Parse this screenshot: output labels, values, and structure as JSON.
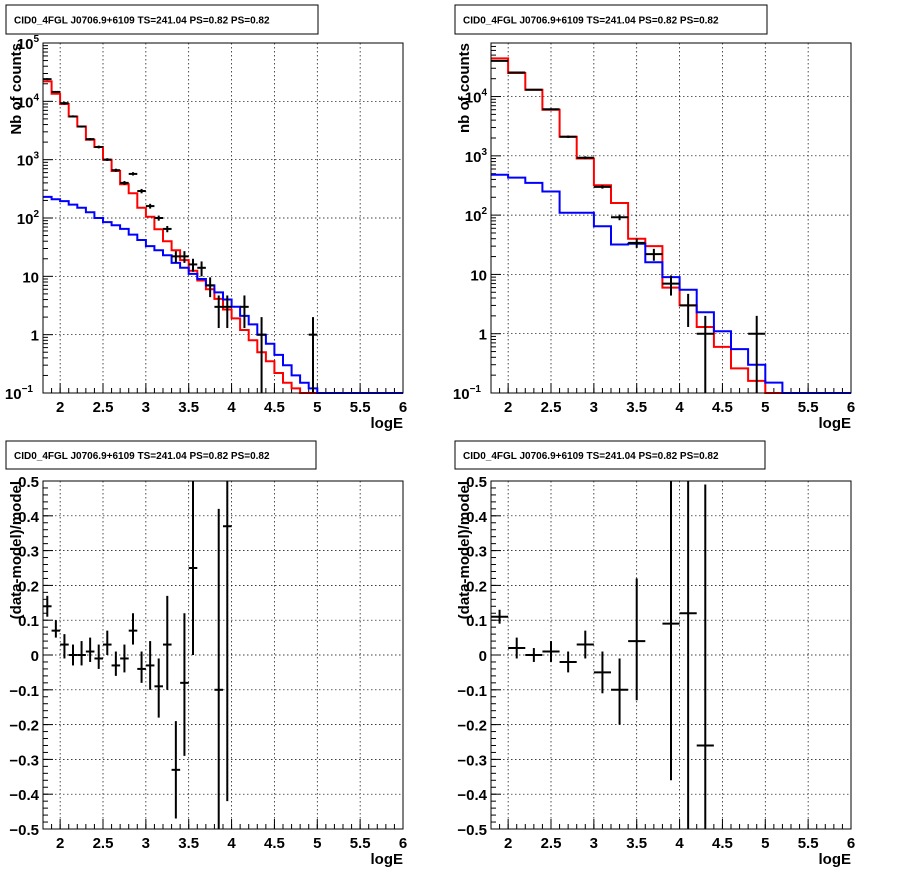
{
  "chart_data": [
    {
      "type": "line",
      "title": "CID0_4FGL J0706.9+6109 TS=241.04 PS=0.82 PS=0.82",
      "xlabel": "logE",
      "ylabel": "Nb of counts",
      "xlim": [
        1.8,
        6.0
      ],
      "ylim": [
        0.1,
        100000
      ],
      "yscale": "log",
      "grid": true,
      "xticks": [
        "2",
        "2.5",
        "3",
        "3.5",
        "4",
        "4.5",
        "5",
        "5.5",
        "6"
      ],
      "yticks": [
        {
          "v": 0.1,
          "b": "10",
          "e": "−1"
        },
        {
          "v": 1,
          "b": "1",
          "e": ""
        },
        {
          "v": 10,
          "b": "10",
          "e": ""
        },
        {
          "v": 100,
          "b": "10",
          "e": "2"
        },
        {
          "v": 1000,
          "b": "10",
          "e": "3"
        },
        {
          "v": 10000,
          "b": "10",
          "e": "4"
        },
        {
          "v": 100000,
          "b": "10",
          "e": "5"
        }
      ],
      "edges": [
        1.8,
        1.9,
        2.0,
        2.1,
        2.2,
        2.3,
        2.4,
        2.5,
        2.6,
        2.7,
        2.8,
        2.9,
        3.0,
        3.1,
        3.2,
        3.3,
        3.4,
        3.5,
        3.6,
        3.7,
        3.8,
        3.9,
        4.0,
        4.1,
        4.2,
        4.3,
        4.4,
        4.5,
        4.6,
        4.7,
        4.8,
        4.9,
        5.0,
        5.2,
        5.4,
        5.6,
        5.8,
        6.0
      ],
      "series": [
        {
          "color": "#ff0000",
          "values": [
            22000,
            13500,
            9000,
            5500,
            3700,
            2200,
            1650,
            1000,
            640,
            380,
            265,
            150,
            105,
            64,
            40,
            28,
            19,
            12.5,
            8.5,
            6.0,
            4.1,
            2.7,
            1.9,
            1.2,
            0.8,
            0.5,
            0.35,
            0.22,
            0.15,
            0.12,
            0.1,
            0.1,
            0.1,
            0.1,
            0.1,
            0.1,
            0.1
          ]
        },
        {
          "color": "#0000ff",
          "values": [
            230,
            210,
            195,
            170,
            150,
            125,
            100,
            85,
            75,
            65,
            52,
            42,
            33,
            28,
            23,
            17,
            14,
            11,
            9,
            7,
            5.3,
            4.0,
            3.0,
            2.1,
            1.5,
            1.0,
            0.7,
            0.45,
            0.3,
            0.2,
            0.15,
            0.12,
            0.1,
            0.1,
            0.1,
            0.1,
            0.1
          ]
        }
      ],
      "points": [
        {
          "x": 1.85,
          "y": 24000,
          "xe": 0.05,
          "lo": 23000,
          "hi": 25000
        },
        {
          "x": 1.95,
          "y": 14500,
          "xe": 0.05,
          "lo": 14000,
          "hi": 15000
        },
        {
          "x": 2.05,
          "y": 9300,
          "xe": 0.05,
          "lo": 8800,
          "hi": 9800
        },
        {
          "x": 2.15,
          "y": 5500,
          "xe": 0.05,
          "lo": 5300,
          "hi": 5750
        },
        {
          "x": 2.25,
          "y": 3700,
          "xe": 0.05,
          "lo": 3550,
          "hi": 3850
        },
        {
          "x": 2.35,
          "y": 2250,
          "xe": 0.05,
          "lo": 2150,
          "hi": 2350
        },
        {
          "x": 2.45,
          "y": 1650,
          "xe": 0.05,
          "lo": 1560,
          "hi": 1740
        },
        {
          "x": 2.55,
          "y": 1000,
          "xe": 0.05,
          "lo": 950,
          "hi": 1060
        },
        {
          "x": 2.65,
          "y": 660,
          "xe": 0.05,
          "lo": 620,
          "hi": 700
        },
        {
          "x": 2.75,
          "y": 400,
          "xe": 0.05,
          "lo": 370,
          "hi": 430
        },
        {
          "x": 2.85,
          "y": 570,
          "xe": 0.05,
          "lo": 535,
          "hi": 610
        },
        {
          "x": 2.95,
          "y": 290,
          "xe": 0.05,
          "lo": 265,
          "hi": 315
        },
        {
          "x": 3.05,
          "y": 160,
          "xe": 0.05,
          "lo": 145,
          "hi": 175
        },
        {
          "x": 3.15,
          "y": 100,
          "xe": 0.05,
          "lo": 90,
          "hi": 110
        },
        {
          "x": 3.25,
          "y": 65,
          "xe": 0.05,
          "lo": 57,
          "hi": 73
        },
        {
          "x": 3.35,
          "y": 22,
          "xe": 0.05,
          "lo": 17,
          "hi": 27
        },
        {
          "x": 3.45,
          "y": 22,
          "xe": 0.05,
          "lo": 17,
          "hi": 27
        },
        {
          "x": 3.55,
          "y": 16,
          "xe": 0.05,
          "lo": 12,
          "hi": 20
        },
        {
          "x": 3.65,
          "y": 14,
          "xe": 0.05,
          "lo": 10,
          "hi": 18
        },
        {
          "x": 3.75,
          "y": 7,
          "xe": 0.05,
          "lo": 4.4,
          "hi": 9.6
        },
        {
          "x": 3.85,
          "y": 3,
          "xe": 0.05,
          "lo": 1.3,
          "hi": 4.7
        },
        {
          "x": 3.95,
          "y": 3,
          "xe": 0.05,
          "lo": 1.3,
          "hi": 4.7
        },
        {
          "x": 4.15,
          "y": 3,
          "xe": 0.05,
          "lo": 1.3,
          "hi": 4.7
        },
        {
          "x": 4.35,
          "y": 1,
          "xe": 0.05,
          "lo": 0.1,
          "hi": 2
        },
        {
          "x": 4.95,
          "y": 1,
          "xe": 0.05,
          "lo": 0.1,
          "hi": 2
        }
      ]
    },
    {
      "type": "line",
      "title": "CID0_4FGL J0706.9+6109 TS=241.04 PS=0.82 PS=0.82",
      "xlabel": "logE",
      "ylabel": "nb of counts",
      "xlim": [
        1.8,
        6.0
      ],
      "ylim": [
        0.1,
        80000
      ],
      "yscale": "log",
      "grid": true,
      "xticks": [
        "2",
        "2.5",
        "3",
        "3.5",
        "4",
        "4.5",
        "5",
        "5.5",
        "6"
      ],
      "yticks": [
        {
          "v": 0.1,
          "b": "10",
          "e": "−1"
        },
        {
          "v": 1,
          "b": "1",
          "e": ""
        },
        {
          "v": 10,
          "b": "10",
          "e": ""
        },
        {
          "v": 100,
          "b": "10",
          "e": "2"
        },
        {
          "v": 1000,
          "b": "10",
          "e": "3"
        },
        {
          "v": 10000,
          "b": "10",
          "e": "4"
        }
      ],
      "edges": [
        1.8,
        2.0,
        2.2,
        2.4,
        2.6,
        2.8,
        3.0,
        3.2,
        3.4,
        3.6,
        3.8,
        4.0,
        4.2,
        4.4,
        4.6,
        4.8,
        5.0,
        5.2,
        5.4,
        5.6,
        5.8,
        6.0
      ],
      "series": [
        {
          "color": "#ff0000",
          "values": [
            44000,
            25000,
            13000,
            6000,
            2100,
            900,
            320,
            160,
            40,
            30,
            6,
            3,
            1.3,
            0.6,
            0.26,
            0.16,
            0.1,
            0.1,
            0.1,
            0.1,
            0.1
          ]
        },
        {
          "color": "#0000ff",
          "values": [
            480,
            430,
            350,
            250,
            110,
            110,
            65,
            32,
            33,
            16,
            9,
            5.5,
            2.3,
            1.1,
            0.55,
            0.3,
            0.15,
            0.1,
            0.1,
            0.1,
            0.1,
            0.1
          ]
        }
      ],
      "points": [
        {
          "x": 1.9,
          "y": 40000,
          "xe": 0.1,
          "lo": 39000,
          "hi": 41000
        },
        {
          "x": 2.1,
          "y": 25500,
          "xe": 0.1,
          "lo": 25000,
          "hi": 26000
        },
        {
          "x": 2.3,
          "y": 13000,
          "xe": 0.1,
          "lo": 12700,
          "hi": 13300
        },
        {
          "x": 2.5,
          "y": 6100,
          "xe": 0.1,
          "lo": 5900,
          "hi": 6300
        },
        {
          "x": 2.7,
          "y": 2100,
          "xe": 0.1,
          "lo": 2000,
          "hi": 2200
        },
        {
          "x": 2.9,
          "y": 930,
          "xe": 0.1,
          "lo": 880,
          "hi": 980
        },
        {
          "x": 3.1,
          "y": 300,
          "xe": 0.1,
          "lo": 280,
          "hi": 320
        },
        {
          "x": 3.3,
          "y": 92,
          "xe": 0.1,
          "lo": 82,
          "hi": 102
        },
        {
          "x": 3.5,
          "y": 34,
          "xe": 0.1,
          "lo": 28,
          "hi": 40
        },
        {
          "x": 3.7,
          "y": 22,
          "xe": 0.1,
          "lo": 17,
          "hi": 27
        },
        {
          "x": 3.9,
          "y": 7,
          "xe": 0.1,
          "lo": 4.4,
          "hi": 9.6
        },
        {
          "x": 4.1,
          "y": 3,
          "xe": 0.1,
          "lo": 1.3,
          "hi": 4.7
        },
        {
          "x": 4.3,
          "y": 1,
          "xe": 0.1,
          "lo": 0.1,
          "hi": 2
        },
        {
          "x": 4.9,
          "y": 1,
          "xe": 0.1,
          "lo": 0.1,
          "hi": 2
        }
      ]
    },
    {
      "type": "scatter",
      "title": "CID0_4FGL J0706.9+6109 TS=241.04 PS=0.82 PS=0.82",
      "xlabel": "logE",
      "ylabel": "(data-model)/model",
      "xlim": [
        1.8,
        6.0
      ],
      "ylim": [
        -0.5,
        0.5
      ],
      "grid": true,
      "xticks": [
        "2",
        "2.5",
        "3",
        "3.5",
        "4",
        "4.5",
        "5",
        "5.5",
        "6"
      ],
      "yticks": [
        "−0.5",
        "−0.4",
        "−0.3",
        "−0.2",
        "−0.1",
        "0",
        "0.1",
        "0.2",
        "0.3",
        "0.4",
        "0.5"
      ],
      "points": [
        {
          "x": 1.85,
          "y": 0.14,
          "xe": 0.05,
          "lo": 0.11,
          "hi": 0.17
        },
        {
          "x": 1.95,
          "y": 0.07,
          "xe": 0.05,
          "lo": 0.05,
          "hi": 0.1
        },
        {
          "x": 2.05,
          "y": 0.03,
          "xe": 0.05,
          "lo": -0.01,
          "hi": 0.06
        },
        {
          "x": 2.15,
          "y": 0.0,
          "xe": 0.05,
          "lo": -0.03,
          "hi": 0.03
        },
        {
          "x": 2.25,
          "y": 0.0,
          "xe": 0.05,
          "lo": -0.03,
          "hi": 0.04
        },
        {
          "x": 2.35,
          "y": 0.01,
          "xe": 0.05,
          "lo": -0.02,
          "hi": 0.05
        },
        {
          "x": 2.45,
          "y": -0.01,
          "xe": 0.05,
          "lo": -0.04,
          "hi": 0.03
        },
        {
          "x": 2.55,
          "y": 0.03,
          "xe": 0.05,
          "lo": 0.0,
          "hi": 0.07
        },
        {
          "x": 2.65,
          "y": -0.03,
          "xe": 0.05,
          "lo": -0.06,
          "hi": 0.01
        },
        {
          "x": 2.75,
          "y": -0.01,
          "xe": 0.05,
          "lo": -0.05,
          "hi": 0.03
        },
        {
          "x": 2.85,
          "y": 0.07,
          "xe": 0.05,
          "lo": 0.03,
          "hi": 0.12
        },
        {
          "x": 2.95,
          "y": -0.04,
          "xe": 0.05,
          "lo": -0.08,
          "hi": 0.01
        },
        {
          "x": 3.05,
          "y": -0.03,
          "xe": 0.05,
          "lo": -0.1,
          "hi": 0.04
        },
        {
          "x": 3.15,
          "y": -0.09,
          "xe": 0.05,
          "lo": -0.18,
          "hi": -0.01
        },
        {
          "x": 3.25,
          "y": 0.03,
          "xe": 0.05,
          "lo": -0.1,
          "hi": 0.17
        },
        {
          "x": 3.35,
          "y": -0.33,
          "xe": 0.05,
          "lo": -0.47,
          "hi": -0.19
        },
        {
          "x": 3.45,
          "y": -0.08,
          "xe": 0.05,
          "lo": -0.29,
          "hi": 0.12
        },
        {
          "x": 3.55,
          "y": 0.25,
          "xe": 0.05,
          "lo": 0.0,
          "hi": 0.5
        },
        {
          "x": 3.85,
          "y": -0.1,
          "xe": 0.05,
          "lo": -0.5,
          "hi": 0.42
        },
        {
          "x": 3.95,
          "y": 0.37,
          "xe": 0.05,
          "lo": -0.42,
          "hi": 0.5
        }
      ]
    },
    {
      "type": "scatter",
      "title": "CID0_4FGL J0706.9+6109 TS=241.04 PS=0.82 PS=0.82",
      "xlabel": "logE",
      "ylabel": "(data-model)/model",
      "xlim": [
        1.8,
        6.0
      ],
      "ylim": [
        -0.5,
        0.5
      ],
      "grid": true,
      "xticks": [
        "2",
        "2.5",
        "3",
        "3.5",
        "4",
        "4.5",
        "5",
        "5.5",
        "6"
      ],
      "yticks": [
        "−0.5",
        "−0.4",
        "−0.3",
        "−0.2",
        "−0.1",
        "0",
        "0.1",
        "0.2",
        "0.3",
        "0.4",
        "0.5"
      ],
      "points": [
        {
          "x": 1.9,
          "y": 0.11,
          "xe": 0.1,
          "lo": 0.09,
          "hi": 0.13
        },
        {
          "x": 2.1,
          "y": 0.02,
          "xe": 0.1,
          "lo": -0.01,
          "hi": 0.05
        },
        {
          "x": 2.3,
          "y": 0.0,
          "xe": 0.1,
          "lo": -0.02,
          "hi": 0.02
        },
        {
          "x": 2.5,
          "y": 0.01,
          "xe": 0.1,
          "lo": -0.02,
          "hi": 0.04
        },
        {
          "x": 2.7,
          "y": -0.02,
          "xe": 0.1,
          "lo": -0.05,
          "hi": 0.01
        },
        {
          "x": 2.9,
          "y": 0.03,
          "xe": 0.1,
          "lo": -0.01,
          "hi": 0.07
        },
        {
          "x": 3.1,
          "y": -0.05,
          "xe": 0.1,
          "lo": -0.11,
          "hi": 0.01
        },
        {
          "x": 3.3,
          "y": -0.1,
          "xe": 0.1,
          "lo": -0.2,
          "hi": -0.01
        },
        {
          "x": 3.5,
          "y": 0.04,
          "xe": 0.1,
          "lo": -0.13,
          "hi": 0.22
        },
        {
          "x": 3.9,
          "y": 0.09,
          "xe": 0.1,
          "lo": -0.36,
          "hi": 0.5
        },
        {
          "x": 4.1,
          "y": 0.12,
          "xe": 0.1,
          "lo": -0.5,
          "hi": 0.5
        },
        {
          "x": 4.3,
          "y": -0.26,
          "xe": 0.1,
          "lo": -0.5,
          "hi": 0.49
        }
      ]
    }
  ]
}
